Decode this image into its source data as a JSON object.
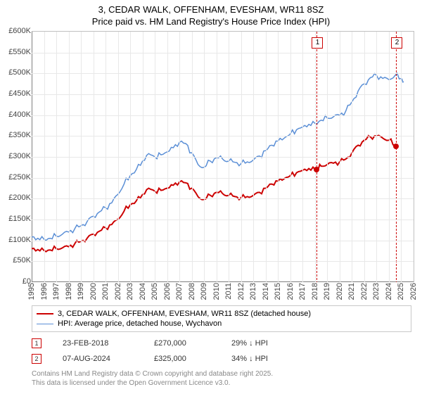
{
  "title": {
    "line1": "3, CEDAR WALK, OFFENHAM, EVESHAM, WR11 8SZ",
    "line2": "Price paid vs. HM Land Registry's House Price Index (HPI)",
    "fontsize": 13
  },
  "chart": {
    "type": "line",
    "background_color": "#ffffff",
    "grid_color": "#e8e8e8",
    "axis_color": "#808080",
    "x_domain_years": [
      1995,
      2026
    ],
    "y_domain": [
      0,
      600000
    ],
    "y_ticks": [
      {
        "v": 0,
        "label": "£0"
      },
      {
        "v": 50000,
        "label": "£50K"
      },
      {
        "v": 100000,
        "label": "£100K"
      },
      {
        "v": 150000,
        "label": "£150K"
      },
      {
        "v": 200000,
        "label": "£200K"
      },
      {
        "v": 250000,
        "label": "£250K"
      },
      {
        "v": 300000,
        "label": "£300K"
      },
      {
        "v": 350000,
        "label": "£350K"
      },
      {
        "v": 400000,
        "label": "£400K"
      },
      {
        "v": 450000,
        "label": "£450K"
      },
      {
        "v": 500000,
        "label": "£500K"
      },
      {
        "v": 550000,
        "label": "£550K"
      },
      {
        "v": 600000,
        "label": "£600K"
      }
    ],
    "x_ticks": [
      1995,
      1996,
      1997,
      1998,
      1999,
      2000,
      2001,
      2002,
      2003,
      2004,
      2005,
      2006,
      2007,
      2008,
      2009,
      2010,
      2011,
      2012,
      2013,
      2014,
      2015,
      2016,
      2017,
      2018,
      2019,
      2020,
      2021,
      2022,
      2023,
      2024,
      2025,
      2026
    ],
    "label_fontsize": 11,
    "series": [
      {
        "name": "price_paid",
        "color": "#cc0000",
        "width": 2,
        "points": [
          [
            1995.0,
            80000
          ],
          [
            1995.5,
            78000
          ],
          [
            1996.0,
            76000
          ],
          [
            1996.5,
            77000
          ],
          [
            1997.0,
            80000
          ],
          [
            1997.5,
            82000
          ],
          [
            1998.0,
            85000
          ],
          [
            1998.5,
            92000
          ],
          [
            1999.0,
            98000
          ],
          [
            1999.5,
            105000
          ],
          [
            2000.0,
            115000
          ],
          [
            2000.5,
            122000
          ],
          [
            2001.0,
            130000
          ],
          [
            2001.5,
            138000
          ],
          [
            2002.0,
            150000
          ],
          [
            2002.5,
            170000
          ],
          [
            2003.0,
            185000
          ],
          [
            2003.5,
            195000
          ],
          [
            2004.0,
            210000
          ],
          [
            2004.5,
            225000
          ],
          [
            2005.0,
            218000
          ],
          [
            2005.5,
            220000
          ],
          [
            2006.0,
            225000
          ],
          [
            2006.5,
            232000
          ],
          [
            2007.0,
            240000
          ],
          [
            2007.5,
            238000
          ],
          [
            2008.0,
            225000
          ],
          [
            2008.5,
            205000
          ],
          [
            2009.0,
            198000
          ],
          [
            2009.5,
            208000
          ],
          [
            2010.0,
            215000
          ],
          [
            2010.5,
            212000
          ],
          [
            2011.0,
            208000
          ],
          [
            2011.5,
            205000
          ],
          [
            2012.0,
            202000
          ],
          [
            2012.5,
            205000
          ],
          [
            2013.0,
            208000
          ],
          [
            2013.5,
            215000
          ],
          [
            2014.0,
            225000
          ],
          [
            2014.5,
            235000
          ],
          [
            2015.0,
            242000
          ],
          [
            2015.5,
            248000
          ],
          [
            2016.0,
            255000
          ],
          [
            2016.5,
            262000
          ],
          [
            2017.0,
            268000
          ],
          [
            2017.5,
            272000
          ],
          [
            2018.0,
            270000
          ],
          [
            2018.15,
            270000
          ],
          [
            2018.5,
            278000
          ],
          [
            2019.0,
            282000
          ],
          [
            2019.5,
            285000
          ],
          [
            2020.0,
            288000
          ],
          [
            2020.5,
            295000
          ],
          [
            2021.0,
            310000
          ],
          [
            2021.5,
            328000
          ],
          [
            2022.0,
            340000
          ],
          [
            2022.5,
            348000
          ],
          [
            2023.0,
            350000
          ],
          [
            2023.5,
            345000
          ],
          [
            2024.0,
            340000
          ],
          [
            2024.5,
            328000
          ],
          [
            2024.6,
            325000
          ]
        ]
      },
      {
        "name": "hpi",
        "color": "#5b8fd6",
        "width": 1.5,
        "points": [
          [
            1995.0,
            108000
          ],
          [
            1995.5,
            105000
          ],
          [
            1996.0,
            103000
          ],
          [
            1996.5,
            105000
          ],
          [
            1997.0,
            110000
          ],
          [
            1997.5,
            115000
          ],
          [
            1998.0,
            120000
          ],
          [
            1998.5,
            128000
          ],
          [
            1999.0,
            135000
          ],
          [
            1999.5,
            145000
          ],
          [
            2000.0,
            158000
          ],
          [
            2000.5,
            168000
          ],
          [
            2001.0,
            178000
          ],
          [
            2001.5,
            190000
          ],
          [
            2002.0,
            210000
          ],
          [
            2002.5,
            235000
          ],
          [
            2003.0,
            255000
          ],
          [
            2003.5,
            270000
          ],
          [
            2004.0,
            290000
          ],
          [
            2004.5,
            308000
          ],
          [
            2005.0,
            300000
          ],
          [
            2005.5,
            305000
          ],
          [
            2006.0,
            312000
          ],
          [
            2006.5,
            322000
          ],
          [
            2007.0,
            335000
          ],
          [
            2007.5,
            332000
          ],
          [
            2008.0,
            310000
          ],
          [
            2008.5,
            282000
          ],
          [
            2009.0,
            275000
          ],
          [
            2009.5,
            290000
          ],
          [
            2010.0,
            298000
          ],
          [
            2010.5,
            295000
          ],
          [
            2011.0,
            290000
          ],
          [
            2011.5,
            287000
          ],
          [
            2012.0,
            284000
          ],
          [
            2012.5,
            288000
          ],
          [
            2013.0,
            293000
          ],
          [
            2013.5,
            302000
          ],
          [
            2014.0,
            315000
          ],
          [
            2014.5,
            328000
          ],
          [
            2015.0,
            338000
          ],
          [
            2015.5,
            345000
          ],
          [
            2016.0,
            355000
          ],
          [
            2016.5,
            365000
          ],
          [
            2017.0,
            372000
          ],
          [
            2017.5,
            378000
          ],
          [
            2018.0,
            380000
          ],
          [
            2018.5,
            388000
          ],
          [
            2019.0,
            393000
          ],
          [
            2019.5,
            396000
          ],
          [
            2020.0,
            400000
          ],
          [
            2020.5,
            410000
          ],
          [
            2021.0,
            432000
          ],
          [
            2021.5,
            458000
          ],
          [
            2022.0,
            475000
          ],
          [
            2022.5,
            490000
          ],
          [
            2023.0,
            495000
          ],
          [
            2023.5,
            488000
          ],
          [
            2024.0,
            485000
          ],
          [
            2024.5,
            495000
          ],
          [
            2025.0,
            488000
          ],
          [
            2025.2,
            480000
          ]
        ]
      }
    ],
    "sale_markers": [
      {
        "n": "1",
        "year": 2018.15,
        "price": 270000,
        "color": "#cc0000"
      },
      {
        "n": "2",
        "year": 2024.6,
        "price": 325000,
        "color": "#cc0000"
      }
    ]
  },
  "legend": {
    "items": [
      {
        "color": "#cc0000",
        "width": 2,
        "label": "3, CEDAR WALK, OFFENHAM, EVESHAM, WR11 8SZ (detached house)"
      },
      {
        "color": "#5b8fd6",
        "width": 1.5,
        "label": "HPI: Average price, detached house, Wychavon"
      }
    ]
  },
  "sales": [
    {
      "n": "1",
      "color": "#cc0000",
      "date": "23-FEB-2018",
      "price": "£270,000",
      "pct": "29% ↓ HPI"
    },
    {
      "n": "2",
      "color": "#cc0000",
      "date": "07-AUG-2024",
      "price": "£325,000",
      "pct": "34% ↓ HPI"
    }
  ],
  "footer": {
    "line1": "Contains HM Land Registry data © Crown copyright and database right 2025.",
    "line2": "This data is licensed under the Open Government Licence v3.0."
  }
}
